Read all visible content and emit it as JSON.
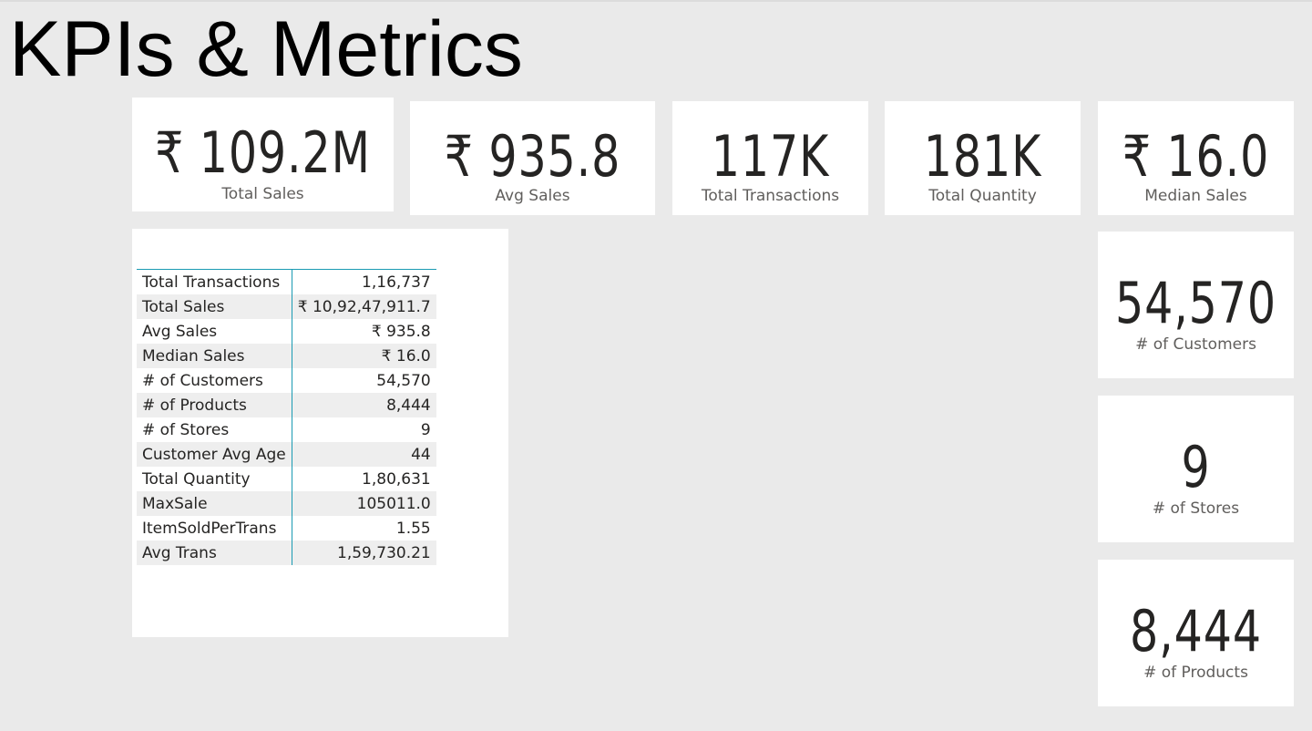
{
  "page": {
    "title": "KPIs & Metrics"
  },
  "cards": {
    "total_sales": {
      "value": "₹ 109.2M",
      "label": "Total Sales"
    },
    "avg_sales": {
      "value": "₹ 935.8",
      "label": "Avg Sales"
    },
    "total_transactions": {
      "value": "117K",
      "label": "Total Transactions"
    },
    "total_quantity": {
      "value": "181K",
      "label": "Total Quantity"
    },
    "median_sales": {
      "value": "₹ 16.0",
      "label": "Median Sales"
    },
    "customers": {
      "value": "54,570",
      "label": "# of Customers"
    },
    "stores": {
      "value": "9",
      "label": "# of Stores"
    },
    "products": {
      "value": "8,444",
      "label": "# of Products"
    }
  },
  "table": {
    "rows": [
      {
        "metric": "Total Transactions",
        "value": "1,16,737"
      },
      {
        "metric": "Total Sales",
        "value": "₹ 10,92,47,911.7"
      },
      {
        "metric": "Avg Sales",
        "value": "₹ 935.8"
      },
      {
        "metric": "Median Sales",
        "value": "₹ 16.0"
      },
      {
        "metric": "# of Customers",
        "value": "54,570"
      },
      {
        "metric": "# of Products",
        "value": "8,444"
      },
      {
        "metric": "# of Stores",
        "value": "9"
      },
      {
        "metric": "Customer Avg Age",
        "value": "44"
      },
      {
        "metric": "Total Quantity",
        "value": "1,80,631"
      },
      {
        "metric": "MaxSale",
        "value": "105011.0"
      },
      {
        "metric": "ItemSoldPerTrans",
        "value": "1.55"
      },
      {
        "metric": "Avg Trans",
        "value": "1,59,730.21"
      }
    ]
  },
  "colors": {
    "background": "#eaeaea",
    "card": "#ffffff",
    "text": "#252423",
    "label": "#605e5c",
    "table_accent": "#1a9bb3",
    "row_alt": "#eeeeee"
  }
}
